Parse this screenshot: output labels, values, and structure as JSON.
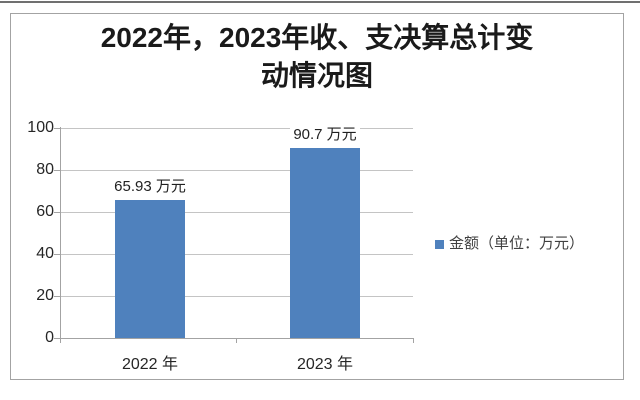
{
  "title": {
    "lines": [
      "2022年，2023年收、支决算总计变",
      "动情况图"
    ]
  },
  "legend": {
    "label": "金额（单位：万元）"
  },
  "axes": {
    "yticks_display": [
      "0",
      "20",
      "40",
      "60",
      "80",
      "100"
    ],
    "xlabels": [
      "2022 年",
      "2023 年"
    ]
  },
  "chart_data": {
    "type": "bar",
    "title": "2022年，2023年收、支决算总计变动情况图",
    "categories": [
      "2022 年",
      "2023 年"
    ],
    "values": [
      65.93,
      90.7
    ],
    "value_labels": [
      "65.93 万元",
      "90.7 万元"
    ],
    "series_name": "金额（单位：万元）",
    "xlabel": "",
    "ylabel": "",
    "yticks": [
      0,
      20,
      40,
      60,
      80,
      100
    ],
    "ylim": [
      0,
      100
    ],
    "grid": true,
    "legend_position": "right",
    "bar_color": "#4f81bd"
  },
  "colors": {
    "bar": "#4f81bd",
    "gridline": "#c4c4c4",
    "axis": "#a3a3a3",
    "frame_border": "#a3a3a3",
    "title_text": "#1a1a1a"
  }
}
